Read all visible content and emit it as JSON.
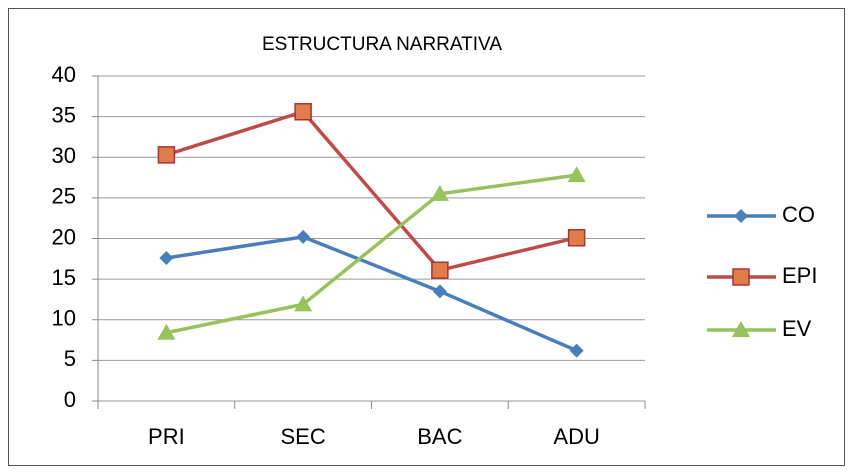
{
  "chart_data": {
    "type": "line",
    "title": "ESTRUCTURA NARRATIVA",
    "categories": [
      "PRI",
      "SEC",
      "BAC",
      "ADU"
    ],
    "series": [
      {
        "name": "CO",
        "color": "#4a7ebb",
        "marker": "diamond",
        "values": [
          17.6,
          20.2,
          13.5,
          6.2
        ]
      },
      {
        "name": "EPI",
        "color": "#be4b48",
        "marker": "square",
        "values": [
          30.3,
          35.6,
          16.1,
          20.1
        ]
      },
      {
        "name": "EV",
        "color": "#98c25c",
        "marker": "triangle",
        "values": [
          8.4,
          11.9,
          25.5,
          27.8
        ]
      }
    ],
    "ylim": [
      0,
      40
    ],
    "yticks": [
      0,
      5,
      10,
      15,
      20,
      25,
      30,
      35,
      40
    ],
    "grid": true,
    "legend": "right"
  }
}
